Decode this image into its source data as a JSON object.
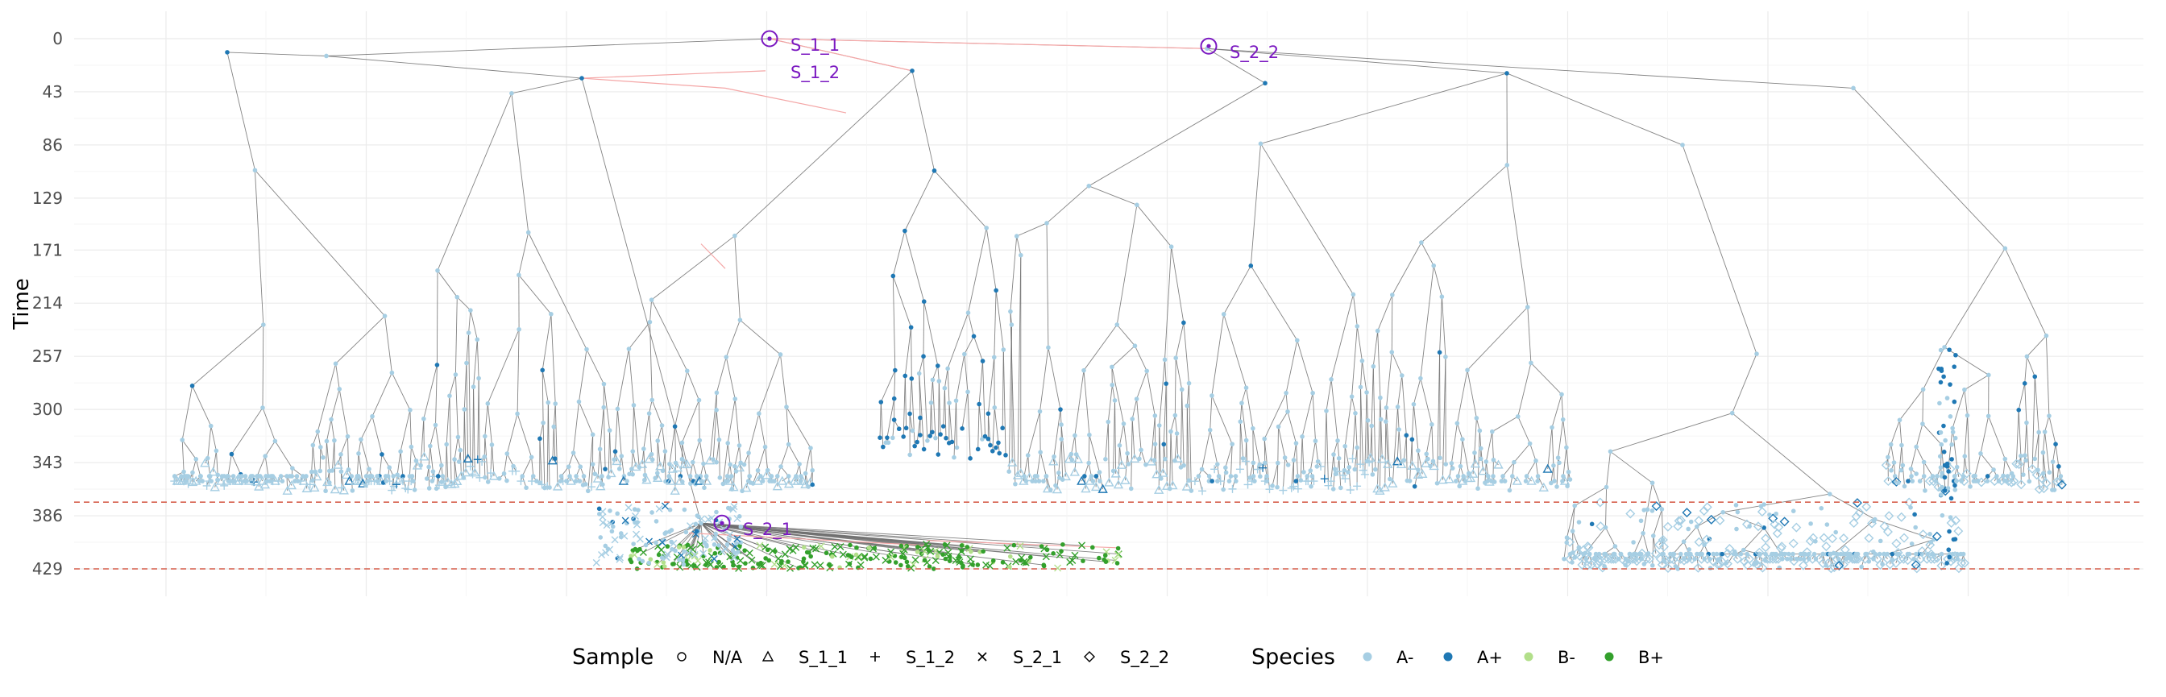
{
  "chart_data": {
    "type": "tree",
    "ylabel": "Time",
    "yticks": [
      0,
      43,
      86,
      129,
      171,
      214,
      257,
      300,
      343,
      386,
      429
    ],
    "ylim": [
      0,
      429
    ],
    "y_reversed": true,
    "grid": true,
    "sampling_time_lines": [
      375,
      429
    ],
    "sampling_line_color": "#D6604D",
    "labelled_nodes": [
      {
        "label": "S_1_1",
        "time": 0
      },
      {
        "label": "S_2_2",
        "time": 6
      },
      {
        "label": "S_1_2",
        "time": 26
      },
      {
        "label": "S_2_1",
        "time": 392
      }
    ],
    "label_color": "#7B19C1",
    "legends": [
      {
        "title": "Sample",
        "entries": [
          {
            "label": "N/A",
            "symbol": "circle"
          },
          {
            "label": "S_1_1",
            "symbol": "triangle"
          },
          {
            "label": "S_1_2",
            "symbol": "plus"
          },
          {
            "label": "S_2_1",
            "symbol": "cross"
          },
          {
            "label": "S_2_2",
            "symbol": "diamond"
          }
        ]
      },
      {
        "title": "Species",
        "entries": [
          {
            "label": "A-",
            "color": "#A6CEE3"
          },
          {
            "label": "A+",
            "color": "#1F78B4"
          },
          {
            "label": "B-",
            "color": "#B2DF8A"
          },
          {
            "label": "B+",
            "color": "#33A02C"
          }
        ]
      }
    ],
    "colors": {
      "branch": "#6e6e6e",
      "migration_edge": "#F4A6A6",
      "grid": "#EBEBEB",
      "a_minus": "#A6CEE3",
      "a_plus": "#1F78B4",
      "b_minus": "#B2DF8A",
      "b_plus": "#33A02C"
    }
  }
}
